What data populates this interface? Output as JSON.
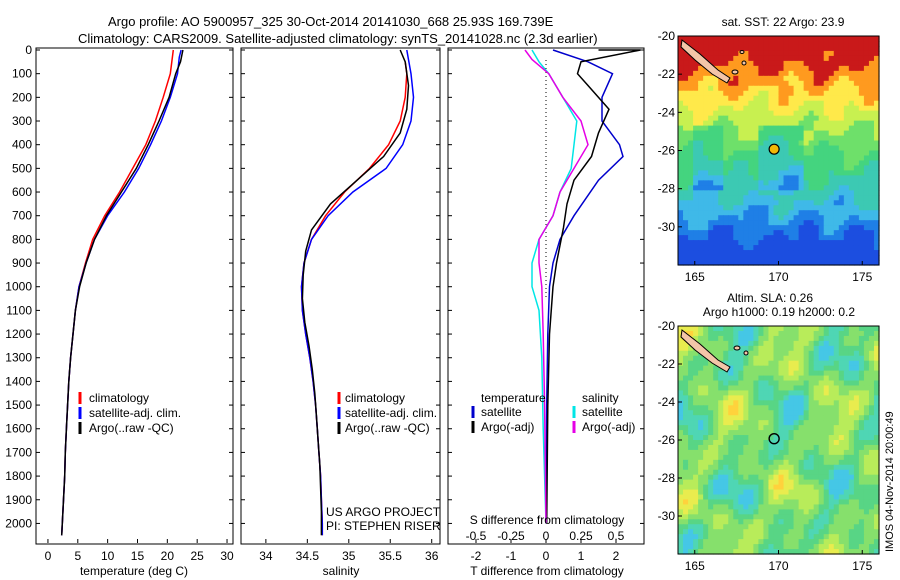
{
  "header": {
    "line1": "Argo profile: AO 5900957_325 30-Oct-2014 20141030_668 25.93S 169.739E",
    "line2": "Climatology: CARS2009. Satellite-adjusted climatology: synTS_20141028.nc (2.3d earlier)"
  },
  "colors": {
    "climatology": "#ff0000",
    "satellite": "#0000ff",
    "argo": "#000000",
    "t_satellite": "#0000cc",
    "s_satellite": "#00e6e6",
    "s_argo": "#e600e6"
  },
  "credit": {
    "line1": "US ARGO PROJECT",
    "line2": "PI: STEPHEN RISER"
  },
  "watermark": "IMOS 04-Nov-2014 20:00:49",
  "chart_data": [
    {
      "type": "line",
      "xlabel": "temperature (deg C)",
      "ylabel": "",
      "xlim": [
        -2,
        31
      ],
      "ylim": [
        2070,
        0
      ],
      "xticks": [
        0,
        5,
        10,
        15,
        20,
        25,
        30
      ],
      "yticks": [
        0,
        100,
        200,
        300,
        400,
        500,
        600,
        700,
        800,
        900,
        1000,
        1100,
        1200,
        1300,
        1400,
        1500,
        1600,
        1700,
        1800,
        1900,
        2000
      ],
      "legend_position": "lower-left",
      "series": [
        {
          "name": "climatology",
          "color": "#ff0000",
          "points": [
            [
              21.0,
              0
            ],
            [
              20.5,
              100
            ],
            [
              19.3,
              200
            ],
            [
              18.0,
              300
            ],
            [
              16.4,
              400
            ],
            [
              14.2,
              500
            ],
            [
              12.0,
              600
            ],
            [
              9.5,
              700
            ],
            [
              7.5,
              800
            ],
            [
              6.3,
              900
            ],
            [
              5.2,
              1000
            ],
            [
              4.6,
              1100
            ],
            [
              4.2,
              1200
            ],
            [
              3.8,
              1300
            ],
            [
              3.5,
              1400
            ],
            [
              3.3,
              1500
            ],
            [
              3.1,
              1600
            ],
            [
              2.9,
              1700
            ],
            [
              2.8,
              1800
            ],
            [
              2.6,
              1900
            ],
            [
              2.4,
              2000
            ],
            [
              2.3,
              2050
            ]
          ]
        },
        {
          "name": "satellite-adj. clim.",
          "color": "#0000ff",
          "points": [
            [
              22.3,
              0
            ],
            [
              22.0,
              30
            ],
            [
              21.7,
              100
            ],
            [
              20.5,
              200
            ],
            [
              19.0,
              300
            ],
            [
              17.2,
              400
            ],
            [
              15.2,
              500
            ],
            [
              12.8,
              600
            ],
            [
              10.0,
              700
            ],
            [
              7.8,
              800
            ],
            [
              6.4,
              900
            ],
            [
              5.2,
              1000
            ],
            [
              4.6,
              1100
            ],
            [
              4.2,
              1200
            ],
            [
              3.8,
              1300
            ],
            [
              3.5,
              1400
            ],
            [
              3.3,
              1500
            ],
            [
              3.1,
              1600
            ],
            [
              2.9,
              1700
            ],
            [
              2.8,
              1800
            ],
            [
              2.6,
              1900
            ],
            [
              2.4,
              2000
            ],
            [
              2.3,
              2050
            ]
          ]
        },
        {
          "name": "Argo(..raw -QC)",
          "color": "#000000",
          "points": [
            [
              22.6,
              0
            ],
            [
              22.2,
              50
            ],
            [
              21.4,
              100
            ],
            [
              20.3,
              200
            ],
            [
              18.6,
              300
            ],
            [
              16.8,
              400
            ],
            [
              14.8,
              500
            ],
            [
              12.3,
              600
            ],
            [
              9.8,
              700
            ],
            [
              7.8,
              800
            ],
            [
              6.4,
              900
            ],
            [
              5.3,
              1000
            ],
            [
              4.6,
              1100
            ],
            [
              4.2,
              1200
            ],
            [
              3.8,
              1300
            ],
            [
              3.5,
              1400
            ],
            [
              3.3,
              1500
            ],
            [
              3.1,
              1600
            ],
            [
              2.9,
              1700
            ],
            [
              2.8,
              1800
            ],
            [
              2.6,
              1900
            ],
            [
              2.4,
              2000
            ],
            [
              2.3,
              2050
            ]
          ]
        }
      ]
    },
    {
      "type": "line",
      "xlabel": "salinity",
      "ylabel": "",
      "xlim": [
        33.7,
        36.1
      ],
      "ylim": [
        2070,
        0
      ],
      "xticks": [
        34,
        34.5,
        35,
        35.5,
        36
      ],
      "yticks": [
        0,
        100,
        200,
        300,
        400,
        500,
        600,
        700,
        800,
        900,
        1000,
        1100,
        1200,
        1300,
        1400,
        1500,
        1600,
        1700,
        1800,
        1900,
        2000
      ],
      "legend_position": "lower-right",
      "series": [
        {
          "name": "climatology",
          "color": "#ff0000",
          "points": [
            [
              35.68,
              50
            ],
            [
              35.7,
              100
            ],
            [
              35.68,
              200
            ],
            [
              35.62,
              300
            ],
            [
              35.48,
              400
            ],
            [
              35.25,
              500
            ],
            [
              34.95,
              600
            ],
            [
              34.72,
              700
            ],
            [
              34.55,
              800
            ],
            [
              34.46,
              900
            ],
            [
              34.43,
              1000
            ],
            [
              34.44,
              1100
            ],
            [
              34.48,
              1200
            ],
            [
              34.53,
              1300
            ],
            [
              34.57,
              1400
            ],
            [
              34.6,
              1500
            ],
            [
              34.62,
              1600
            ],
            [
              34.64,
              1700
            ],
            [
              34.66,
              1800
            ],
            [
              34.67,
              1900
            ],
            [
              34.68,
              2000
            ],
            [
              34.68,
              2050
            ]
          ]
        },
        {
          "name": "satellite-adj. clim.",
          "color": "#0000ff",
          "points": [
            [
              35.7,
              0
            ],
            [
              35.75,
              100
            ],
            [
              35.78,
              200
            ],
            [
              35.75,
              300
            ],
            [
              35.65,
              400
            ],
            [
              35.45,
              500
            ],
            [
              35.05,
              600
            ],
            [
              34.75,
              700
            ],
            [
              34.55,
              800
            ],
            [
              34.46,
              900
            ],
            [
              34.43,
              1000
            ],
            [
              34.44,
              1100
            ],
            [
              34.48,
              1200
            ],
            [
              34.53,
              1300
            ],
            [
              34.57,
              1400
            ],
            [
              34.6,
              1500
            ],
            [
              34.62,
              1600
            ],
            [
              34.64,
              1700
            ],
            [
              34.66,
              1800
            ],
            [
              34.67,
              1900
            ],
            [
              34.68,
              2000
            ],
            [
              34.68,
              2050
            ]
          ]
        },
        {
          "name": "Argo(..raw -QC)",
          "color": "#000000",
          "points": [
            [
              35.62,
              0
            ],
            [
              35.68,
              50
            ],
            [
              35.72,
              150
            ],
            [
              35.7,
              250
            ],
            [
              35.62,
              350
            ],
            [
              35.42,
              450
            ],
            [
              35.1,
              550
            ],
            [
              34.78,
              650
            ],
            [
              34.55,
              760
            ],
            [
              34.48,
              850
            ],
            [
              34.45,
              950
            ],
            [
              34.44,
              1050
            ],
            [
              34.47,
              1150
            ],
            [
              34.52,
              1250
            ],
            [
              34.56,
              1350
            ],
            [
              34.59,
              1450
            ],
            [
              34.61,
              1550
            ],
            [
              34.63,
              1650
            ],
            [
              34.65,
              1750
            ],
            [
              34.66,
              1850
            ],
            [
              34.67,
              1950
            ],
            [
              34.67,
              2050
            ]
          ]
        }
      ]
    },
    {
      "type": "line",
      "xlabel_top": "S difference from climatology",
      "xlabel": "T difference from climatology",
      "xlim_T": [
        -2.8,
        2.8
      ],
      "xlim_S": [
        -0.7,
        0.7
      ],
      "xticks_T": [
        -2,
        -1,
        0,
        1,
        2
      ],
      "xticks_S": [
        "-0.5",
        "-0.25",
        "0",
        "0.25",
        "0.5"
      ],
      "ylim": [
        2070,
        0
      ],
      "legend": {
        "left_title": "temperature",
        "right_title": "salinity"
      },
      "series": [
        {
          "name": "satellite",
          "quantity": "temperature",
          "color": "#0000cc",
          "points": [
            [
              0.2,
              0
            ],
            [
              1.2,
              50
            ],
            [
              1.9,
              100
            ],
            [
              1.6,
              200
            ],
            [
              1.6,
              300
            ],
            [
              2.1,
              400
            ],
            [
              2.2,
              450
            ],
            [
              1.5,
              550
            ],
            [
              0.8,
              700
            ],
            [
              0.4,
              800
            ],
            [
              0.2,
              900
            ],
            [
              0.1,
              1000
            ],
            [
              0.05,
              1200
            ],
            [
              0.02,
              1500
            ],
            [
              0.0,
              2000
            ]
          ]
        },
        {
          "name": "Argo(-adj)",
          "quantity": "temperature",
          "color": "#000000",
          "points": [
            [
              1.5,
              0
            ],
            [
              2.7,
              0
            ],
            [
              1.0,
              50
            ],
            [
              0.9,
              100
            ],
            [
              1.2,
              150
            ],
            [
              1.8,
              250
            ],
            [
              1.5,
              350
            ],
            [
              1.3,
              450
            ],
            [
              0.8,
              550
            ],
            [
              0.6,
              650
            ],
            [
              0.5,
              750
            ],
            [
              0.3,
              900
            ],
            [
              0.2,
              1000
            ],
            [
              0.1,
              1200
            ],
            [
              0.05,
              1500
            ],
            [
              0.02,
              2000
            ]
          ]
        },
        {
          "name": "satellite",
          "quantity": "salinity",
          "color": "#00e6e6",
          "points": [
            [
              -0.1,
              0
            ],
            [
              -0.05,
              50
            ],
            [
              0.02,
              100
            ],
            [
              0.12,
              200
            ],
            [
              0.22,
              300
            ],
            [
              0.2,
              400
            ],
            [
              0.18,
              500
            ],
            [
              0.1,
              600
            ],
            [
              0.05,
              700
            ],
            [
              -0.05,
              800
            ],
            [
              -0.1,
              900
            ],
            [
              -0.1,
              1000
            ],
            [
              -0.05,
              1100
            ],
            [
              -0.03,
              1300
            ],
            [
              -0.02,
              1600
            ],
            [
              0.0,
              2000
            ]
          ]
        },
        {
          "name": "Argo(-adj)",
          "quantity": "salinity",
          "color": "#e600e6",
          "points": [
            [
              -0.15,
              0
            ],
            [
              -0.1,
              40
            ],
            [
              0.02,
              100
            ],
            [
              0.12,
              200
            ],
            [
              0.25,
              300
            ],
            [
              0.3,
              400
            ],
            [
              0.2,
              500
            ],
            [
              0.1,
              600
            ],
            [
              0.05,
              700
            ],
            [
              -0.05,
              800
            ],
            [
              -0.05,
              900
            ],
            [
              -0.03,
              1000
            ],
            [
              -0.02,
              1200
            ],
            [
              -0.01,
              1500
            ],
            [
              0.0,
              2000
            ]
          ]
        }
      ]
    },
    {
      "type": "heatmap",
      "title": "sat. SST: 22  Argo: 23.9",
      "xlim": [
        164,
        176
      ],
      "ylim": [
        -32,
        -20
      ],
      "xticks": [
        165,
        170,
        175
      ],
      "yticks": [
        -20,
        -22,
        -24,
        -26,
        -28,
        -30
      ],
      "marker": [
        169.739,
        -25.93
      ]
    },
    {
      "type": "heatmap",
      "title": "Altim. SLA: 0.26",
      "subtitle": "Argo h1000: 0.19 h2000: 0.2",
      "xlim": [
        164,
        176
      ],
      "ylim": [
        -32,
        -20
      ],
      "xticks": [
        165,
        170,
        175
      ],
      "yticks": [
        -20,
        -22,
        -24,
        -26,
        -28,
        -30
      ],
      "marker": [
        169.739,
        -25.93
      ]
    }
  ]
}
